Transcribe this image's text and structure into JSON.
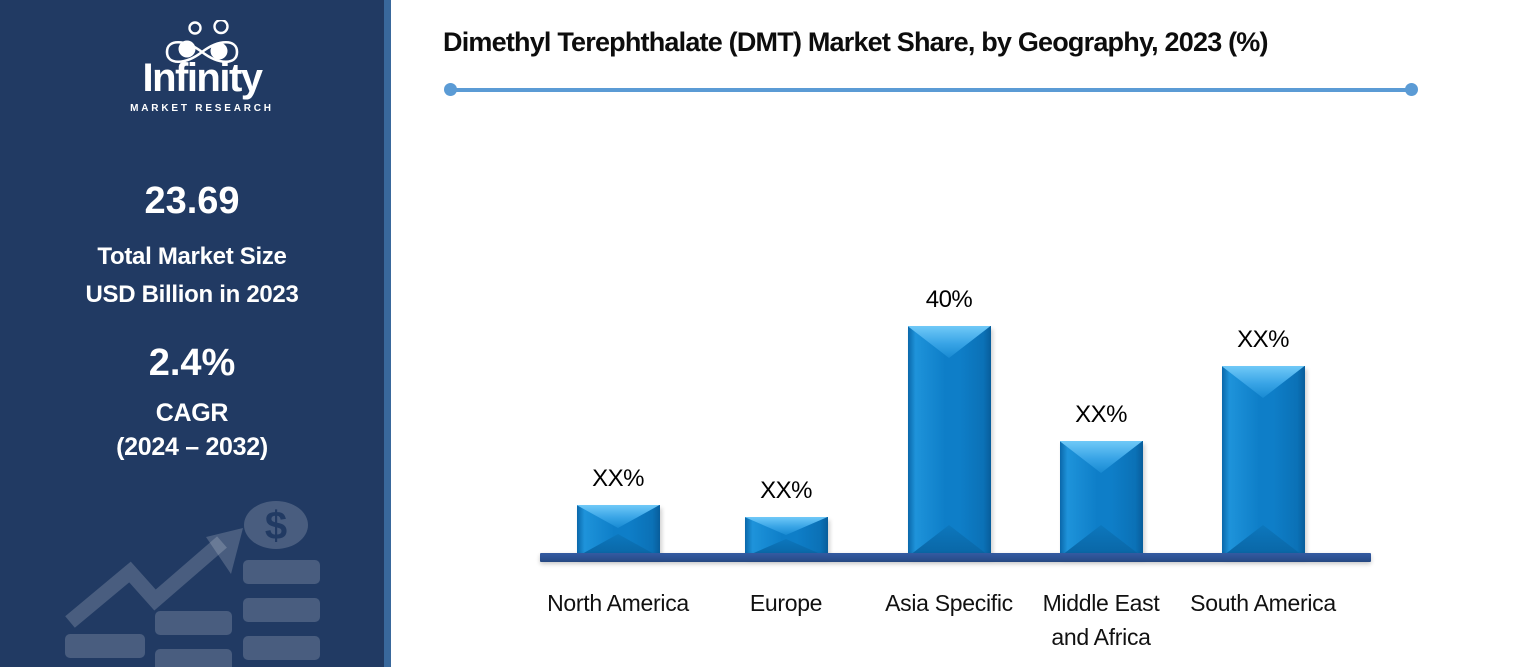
{
  "sidebar": {
    "logo": {
      "brand": "Infinity",
      "tagline": "MARKET RESEARCH",
      "icon": "infinity-people-icon"
    },
    "market_size": {
      "value": "23.69",
      "label_line1": "Total Market Size",
      "label_line2": "USD Billion in 2023"
    },
    "cagr": {
      "value": "2.4%",
      "label": "CAGR",
      "period": "(2024 – 2032)"
    },
    "decoration_icons": [
      "growth-arrow-icon",
      "dollar-coin-icon",
      "bar-stack-icon"
    ],
    "colors": {
      "background": "#213A63",
      "edge_strip": "#39689C",
      "decoration": "rgba(255,255,255,0.18)"
    }
  },
  "main": {
    "title": "Dimethyl Terephthalate (DMT) Market Share, by Geography, 2023 (%)",
    "accent_color": "#5B9BD5"
  },
  "chart_data": {
    "type": "bar",
    "title": "Dimethyl Terephthalate (DMT) Market Share, by Geography, 2023 (%)",
    "categories": [
      "North America",
      "Europe",
      "Asia Specific",
      "Middle East and Africa",
      "South America"
    ],
    "category_lines": [
      [
        "North America"
      ],
      [
        "Europe"
      ],
      [
        "Asia Specific"
      ],
      [
        "Middle East",
        "and Africa"
      ],
      [
        "South America"
      ]
    ],
    "value_labels": [
      "XX%",
      "XX%",
      "40%",
      "XX%",
      "XX%"
    ],
    "values_pct_estimated": [
      9,
      7,
      40,
      20,
      33
    ],
    "labeled_value": {
      "category": "Asia Specific",
      "value": 40
    },
    "xlabel": "",
    "ylabel": "",
    "grid": false,
    "legend": false,
    "bar_color": "#0D7DC7",
    "bar_bevel_highlight": "#5BBCF5",
    "baseline_color": "#2C5193",
    "value_label_color": "#000000"
  }
}
